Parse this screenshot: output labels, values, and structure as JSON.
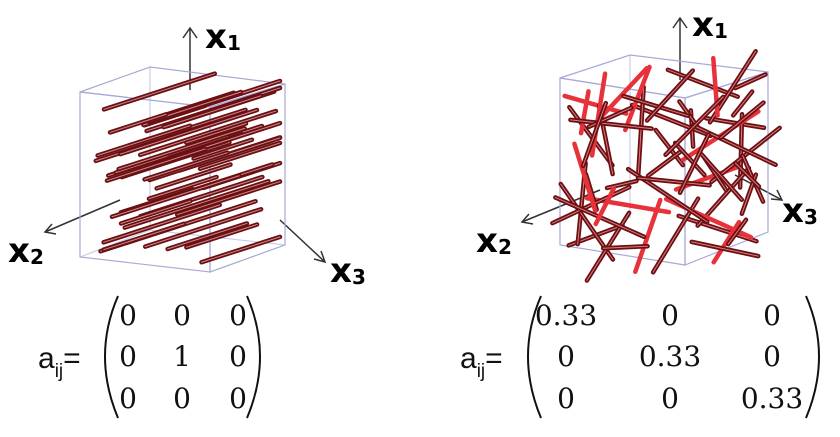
{
  "axes": {
    "x1": {
      "letter": "x",
      "subscript": "1"
    },
    "x2": {
      "letter": "x",
      "subscript": "2"
    },
    "x3": {
      "letter": "x",
      "subscript": "3"
    }
  },
  "tensor_label": {
    "base": "a",
    "subscript": "ij",
    "equals": "="
  },
  "panels": [
    {
      "id": "aligned",
      "matrix": [
        [
          "0",
          "0",
          "0"
        ],
        [
          "0",
          "1",
          "0"
        ],
        [
          "0",
          "0",
          "0"
        ]
      ]
    },
    {
      "id": "random",
      "matrix": [
        [
          "0.33",
          "0",
          "0"
        ],
        [
          "0",
          "0.33",
          "0"
        ],
        [
          "0",
          "0",
          "0.33"
        ]
      ]
    }
  ],
  "colors": {
    "fiber": "#6b0f12",
    "fiber_highlight": "#e8323a",
    "box_edge": "#a9a9d8",
    "axis": "#333333"
  }
}
